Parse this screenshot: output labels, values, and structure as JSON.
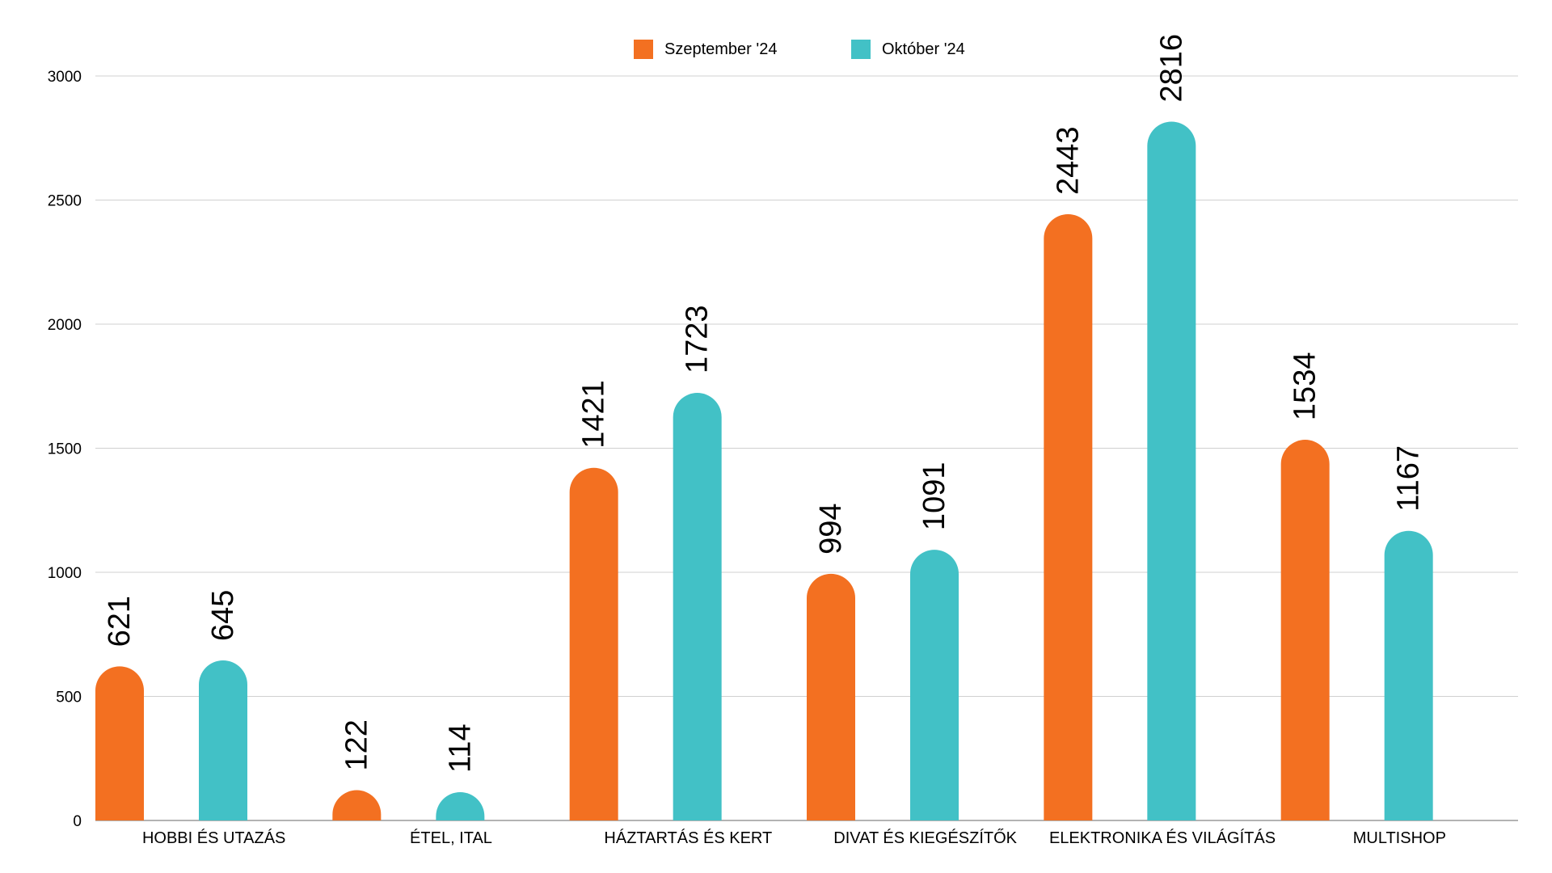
{
  "chart_data": {
    "type": "bar",
    "categories": [
      "HOBBI ÉS UTAZÁS",
      "ÉTEL, ITAL",
      "HÁZTARTÁS ÉS KERT",
      "DIVAT ÉS KIEGÉSZÍTŐK",
      "ELEKTRONIKA ÉS VILÁGÍTÁS",
      "MULTISHOP"
    ],
    "series": [
      {
        "name": "Szeptember '24",
        "color": "#f37021",
        "values": [
          621,
          122,
          1421,
          994,
          2443,
          1534
        ]
      },
      {
        "name": "Október '24",
        "color": "#42c1c6",
        "values": [
          645,
          114,
          1723,
          1091,
          2816,
          1167
        ]
      }
    ],
    "ylim": [
      0,
      3000
    ],
    "yticks": [
      0,
      500,
      1000,
      1500,
      2000,
      2500,
      3000
    ],
    "grid": true,
    "legend": "top-center",
    "data_labels": true
  }
}
